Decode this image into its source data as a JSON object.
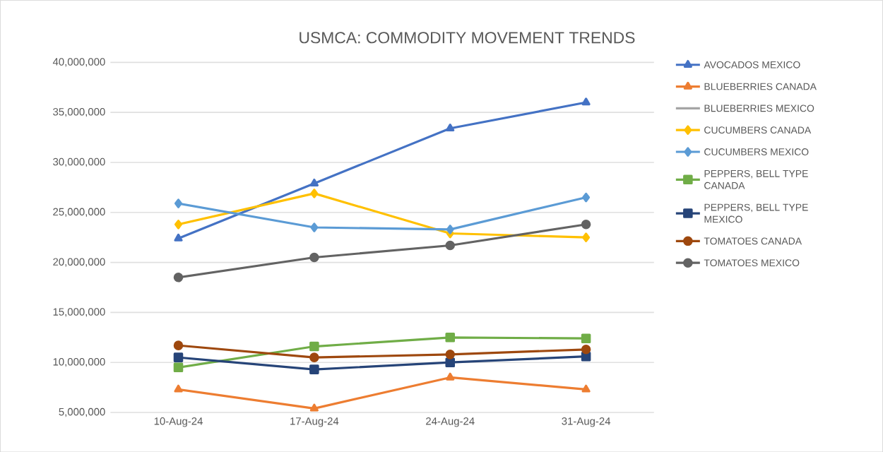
{
  "chart_data": {
    "type": "line",
    "title": "USMCA: COMMODITY MOVEMENT TRENDS",
    "categories": [
      "10-Aug-24",
      "17-Aug-24",
      "24-Aug-24",
      "31-Aug-24"
    ],
    "series": [
      {
        "name": "AVOCADOS MEXICO",
        "color": "#4472c4",
        "marker": "triangle",
        "values": [
          22400000,
          27900000,
          33400000,
          36000000
        ]
      },
      {
        "name": "BLUEBERRIES CANADA",
        "color": "#ed7d31",
        "marker": "triangle",
        "values": [
          7300000,
          5400000,
          8500000,
          7300000
        ]
      },
      {
        "name": "BLUEBERRIES MEXICO",
        "color": "#a5a5a5",
        "marker": "none",
        "values": [
          null,
          null,
          null,
          null
        ]
      },
      {
        "name": "CUCUMBERS CANADA",
        "color": "#ffc000",
        "marker": "diamond",
        "values": [
          23800000,
          26900000,
          22900000,
          22500000
        ]
      },
      {
        "name": "CUCUMBERS MEXICO",
        "color": "#5b9bd5",
        "marker": "diamond",
        "values": [
          25900000,
          23500000,
          23300000,
          26500000
        ]
      },
      {
        "name": "PEPPERS, BELL TYPE CANADA",
        "color": "#70ad47",
        "marker": "square",
        "values": [
          9500000,
          11600000,
          12500000,
          12400000
        ]
      },
      {
        "name": "PEPPERS, BELL TYPE MEXICO",
        "color": "#264478",
        "marker": "square",
        "values": [
          10500000,
          9300000,
          10000000,
          10600000
        ]
      },
      {
        "name": "TOMATOES CANADA",
        "color": "#9e480e",
        "marker": "circle",
        "values": [
          11700000,
          10500000,
          10800000,
          11300000
        ]
      },
      {
        "name": "TOMATOES MEXICO",
        "color": "#636363",
        "marker": "circle",
        "values": [
          18500000,
          20500000,
          21700000,
          23800000
        ]
      }
    ],
    "ylim": [
      5000000,
      40000000
    ],
    "yticks": [
      {
        "value": 5000000,
        "label": "5,000,000"
      },
      {
        "value": 10000000,
        "label": "10,000,000"
      },
      {
        "value": 15000000,
        "label": "15,000,000"
      },
      {
        "value": 20000000,
        "label": "20,000,000"
      },
      {
        "value": 25000000,
        "label": "25,000,000"
      },
      {
        "value": 30000000,
        "label": "30,000,000"
      },
      {
        "value": 35000000,
        "label": "35,000,000"
      },
      {
        "value": 40000000,
        "label": "40,000,000"
      }
    ],
    "grid": "y",
    "legend": "right",
    "line_style": "solid"
  }
}
